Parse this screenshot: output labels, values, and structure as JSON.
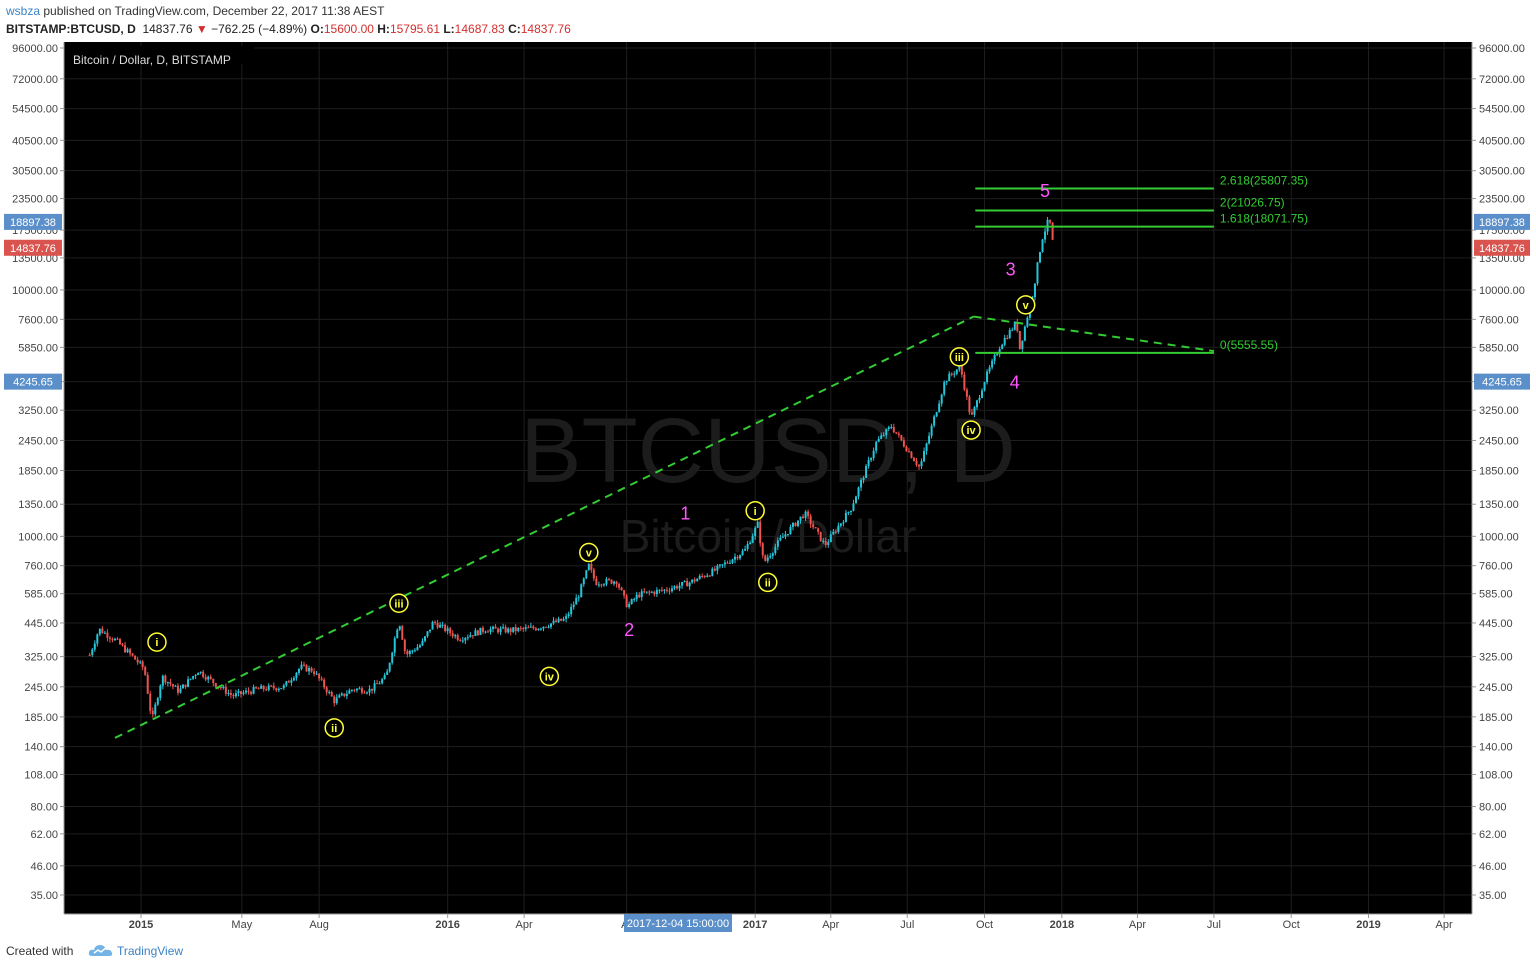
{
  "header": {
    "user": "wsbza",
    "publish_text": " published on TradingView.com, December 22, 2017 11:38 AEST",
    "symbol": "BITSTAMP:BTCUSD, D",
    "last": "14837.76",
    "arrow": "▼",
    "change": "−762.25 (−4.89%)",
    "o_label": "O:",
    "o": "15600.00",
    "h_label": "H:",
    "h": "15795.61",
    "l_label": "L:",
    "l": "14687.83",
    "c_label": "C:",
    "c": "14837.76"
  },
  "chart": {
    "legend": "Bitcoin / Dollar, D, BITSTAMP",
    "watermark_symbol": "BTCUSD, D",
    "watermark_name": "Bitcoin / Dollar",
    "colors": {
      "bg": "#000000",
      "grid": "#1e1e1e",
      "up": "#26c6da",
      "down": "#ef5350",
      "fib": "#33cc33",
      "trend": "#33cc33",
      "wave_major": "#ff55ff",
      "wave_minor": "#ffff33"
    }
  },
  "chart_data": {
    "type": "candlestick",
    "scale": "log",
    "y_ticks": [
      "96000.00",
      "72000.00",
      "54500.00",
      "40500.00",
      "30500.00",
      "23500.00",
      "17500.00",
      "13500.00",
      "10000.00",
      "7600.00",
      "5850.00",
      "4245.65",
      "3250.00",
      "2450.00",
      "1850.00",
      "1350.00",
      "1000.00",
      "760.00",
      "585.00",
      "445.00",
      "325.00",
      "245.00",
      "185.00",
      "140.00",
      "108.00",
      "80.00",
      "62.00",
      "46.00",
      "35.00"
    ],
    "x_ticks": [
      "2015",
      "May",
      "Aug",
      "2016",
      "Apr",
      "Ar",
      "2017",
      "Apr",
      "Jul",
      "Oct",
      "2018",
      "Apr",
      "Jul",
      "Oct",
      "2019",
      "Apr"
    ],
    "crosshair_date": "2017-12-04 15:00:00",
    "price_labels": [
      {
        "text": "18897.38",
        "value": 18897.38,
        "color": "#5b8fc9"
      },
      {
        "text": "14837.76",
        "value": 14837.76,
        "color": "#d9534f"
      },
      {
        "text": "4245.65",
        "value": 4245.65,
        "color": "#5b8fc9"
      }
    ],
    "fib_levels": [
      {
        "label": "2.618(25807.35)",
        "value": 25807.35
      },
      {
        "label": "2(21026.75)",
        "value": 21026.75
      },
      {
        "label": "1.618(18071.75)",
        "value": 18071.75
      },
      {
        "label": "0(5555.55)",
        "value": 5555.55
      }
    ],
    "waves_major": [
      "1",
      "2",
      "3",
      "4",
      "5"
    ],
    "waves_minor": [
      "i",
      "ii",
      "iii",
      "iv",
      "v",
      "i",
      "ii",
      "iii",
      "iv",
      "v"
    ],
    "price_path": [
      [
        "2014-11-01",
        330
      ],
      [
        "2014-11-12",
        420
      ],
      [
        "2014-12-01",
        380
      ],
      [
        "2014-12-20",
        330
      ],
      [
        "2015-01-05",
        290
      ],
      [
        "2015-01-14",
        178
      ],
      [
        "2015-01-26",
        270
      ],
      [
        "2015-02-15",
        235
      ],
      [
        "2015-03-10",
        285
      ],
      [
        "2015-04-01",
        250
      ],
      [
        "2015-04-20",
        225
      ],
      [
        "2015-05-20",
        240
      ],
      [
        "2015-06-20",
        245
      ],
      [
        "2015-07-10",
        295
      ],
      [
        "2015-07-25",
        285
      ],
      [
        "2015-08-19",
        215
      ],
      [
        "2015-09-10",
        240
      ],
      [
        "2015-10-01",
        238
      ],
      [
        "2015-10-20",
        270
      ],
      [
        "2015-11-04",
        460
      ],
      [
        "2015-11-12",
        330
      ],
      [
        "2015-12-01",
        365
      ],
      [
        "2015-12-15",
        450
      ],
      [
        "2016-01-15",
        385
      ],
      [
        "2016-02-15",
        420
      ],
      [
        "2016-03-15",
        415
      ],
      [
        "2016-04-15",
        425
      ],
      [
        "2016-05-20",
        460
      ],
      [
        "2016-06-05",
        580
      ],
      [
        "2016-06-17",
        760
      ],
      [
        "2016-06-25",
        650
      ],
      [
        "2016-07-20",
        660
      ],
      [
        "2016-08-02",
        520
      ],
      [
        "2016-08-15",
        580
      ],
      [
        "2016-09-15",
        605
      ],
      [
        "2016-10-15",
        650
      ],
      [
        "2016-11-15",
        730
      ],
      [
        "2016-12-20",
        880
      ],
      [
        "2017-01-04",
        1120
      ],
      [
        "2017-01-11",
        780
      ],
      [
        "2017-02-01",
        980
      ],
      [
        "2017-03-01",
        1240
      ],
      [
        "2017-03-25",
        920
      ],
      [
        "2017-04-25",
        1300
      ],
      [
        "2017-05-25",
        2400
      ],
      [
        "2017-06-12",
        2800
      ],
      [
        "2017-07-16",
        1900
      ],
      [
        "2017-08-15",
        4300
      ],
      [
        "2017-09-02",
        4900
      ],
      [
        "2017-09-15",
        3000
      ],
      [
        "2017-10-01",
        4300
      ],
      [
        "2017-10-20",
        6000
      ],
      [
        "2017-11-08",
        7400
      ],
      [
        "2017-11-12",
        5800
      ],
      [
        "2017-11-28",
        9900
      ],
      [
        "2017-12-08",
        16000
      ],
      [
        "2017-12-17",
        19600
      ],
      [
        "2017-12-22",
        14837.76
      ]
    ]
  },
  "footer": {
    "created": "Created with",
    "brand": "TradingView"
  }
}
